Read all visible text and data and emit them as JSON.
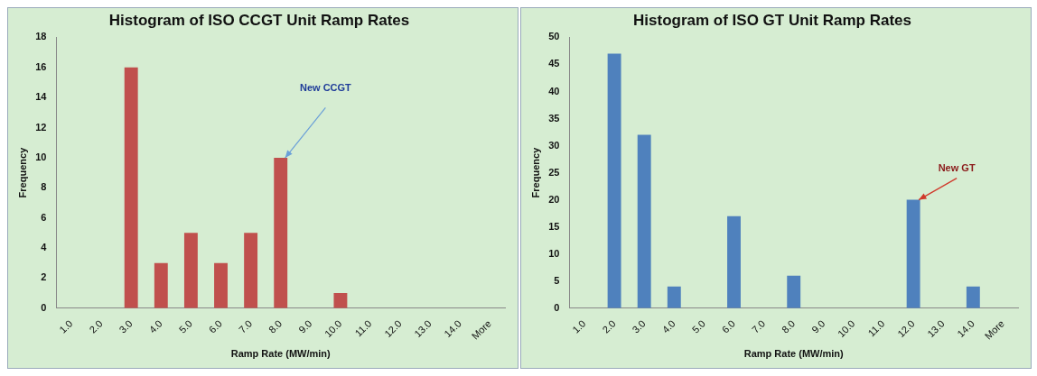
{
  "chart_data": [
    {
      "type": "bar",
      "title": "Histogram of ISO CCGT Unit Ramp Rates",
      "xlabel": "Ramp Rate (MW/min)",
      "ylabel": "Frequency",
      "categories": [
        "1.0",
        "2.0",
        "3.0",
        "4.0",
        "5.0",
        "6.0",
        "7.0",
        "8.0",
        "9.0",
        "10.0",
        "11.0",
        "12.0",
        "13.0",
        "14.0",
        "More"
      ],
      "values": [
        0,
        0,
        16,
        3,
        5,
        3,
        5,
        10,
        0,
        1,
        0,
        0,
        0,
        0,
        0
      ],
      "color": "#c0504d",
      "ylim": [
        0,
        18
      ],
      "yticks": [
        0,
        2,
        4,
        6,
        8,
        10,
        12,
        14,
        16,
        18
      ],
      "grid": false,
      "legend": false,
      "annotations": [
        "New CCGT"
      ]
    },
    {
      "type": "bar",
      "title": "Histogram of ISO GT Unit Ramp Rates",
      "xlabel": "Ramp Rate (MW/min)",
      "ylabel": "Frequency",
      "categories": [
        "1.0",
        "2.0",
        "3.0",
        "4.0",
        "5.0",
        "6.0",
        "7.0",
        "8.0",
        "9.0",
        "10.0",
        "11.0",
        "12.0",
        "13.0",
        "14.0",
        "More"
      ],
      "values": [
        0,
        47,
        32,
        4,
        0,
        17,
        0,
        6,
        0,
        0,
        0,
        20,
        0,
        4,
        0
      ],
      "color": "#4f81bd",
      "ylim": [
        0,
        50
      ],
      "yticks": [
        0,
        5,
        10,
        15,
        20,
        25,
        30,
        35,
        40,
        45,
        50
      ],
      "grid": false,
      "legend": false,
      "annotations": [
        {
          "text": "New GT",
          "x": "12.0",
          "y": 20
        }
      ]
    }
  ]
}
